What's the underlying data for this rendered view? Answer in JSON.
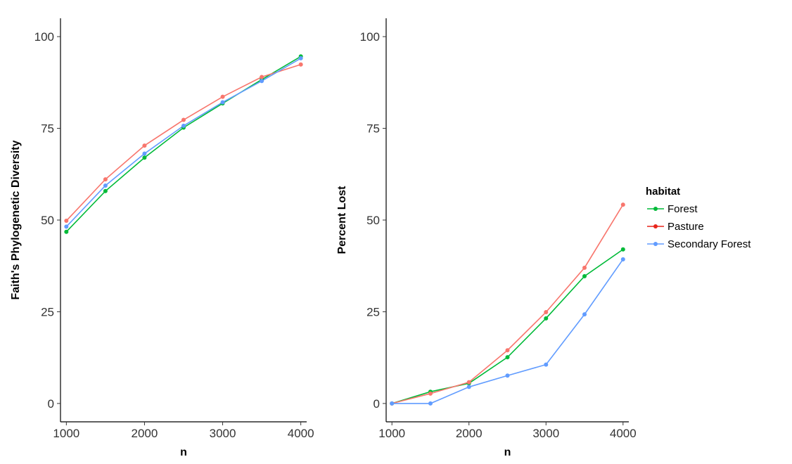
{
  "chart_data": [
    {
      "type": "line",
      "xlabel": "n",
      "ylabel": "Faith's Phylogenetic Diversity",
      "x": [
        1000,
        1500,
        2000,
        2500,
        3000,
        3500,
        4000
      ],
      "xlim": [
        925,
        4075
      ],
      "ylim": [
        -5,
        105
      ],
      "xticks": [
        "1000",
        "2000",
        "3000",
        "4000"
      ],
      "yticks": [
        "0",
        "25",
        "50",
        "75",
        "100"
      ],
      "grid": false,
      "series": [
        {
          "name": "Forest",
          "color": "#00BA38",
          "values": [
            46.8,
            57.9,
            67.0,
            75.2,
            81.8,
            88.3,
            94.6
          ]
        },
        {
          "name": "Pasture",
          "color": "#F8766D",
          "values": [
            49.8,
            61.1,
            70.3,
            77.3,
            83.6,
            89.0,
            92.4
          ]
        },
        {
          "name": "Secondary Forest",
          "color": "#619CFF",
          "values": [
            48.2,
            59.4,
            68.1,
            75.7,
            82.1,
            87.9,
            94.1
          ]
        }
      ]
    },
    {
      "type": "line",
      "xlabel": "n",
      "ylabel": "Percent Lost",
      "x": [
        1000,
        1500,
        2000,
        2500,
        3000,
        3500,
        4000
      ],
      "xlim": [
        925,
        4075
      ],
      "ylim": [
        -5,
        105
      ],
      "xticks": [
        "1000",
        "2000",
        "3000",
        "4000"
      ],
      "yticks": [
        "0",
        "25",
        "50",
        "75",
        "100"
      ],
      "grid": false,
      "series": [
        {
          "name": "Forest",
          "color": "#00BA38",
          "values": [
            0,
            3.2,
            5.5,
            12.6,
            23.2,
            34.7,
            42.0
          ]
        },
        {
          "name": "Pasture",
          "color": "#F8766D",
          "values": [
            0,
            2.7,
            5.8,
            14.5,
            24.9,
            37.0,
            54.2
          ]
        },
        {
          "name": "Secondary Forest",
          "color": "#619CFF",
          "values": [
            0,
            0,
            4.5,
            7.6,
            10.6,
            24.3,
            39.3
          ]
        }
      ]
    }
  ],
  "legend": {
    "title": "habitat",
    "placement": "right",
    "items": [
      {
        "label": "Forest",
        "color": "#00BA38"
      },
      {
        "label": "Pasture",
        "color": "#E8251B"
      },
      {
        "label": "Secondary Forest",
        "color": "#619CFF"
      }
    ]
  }
}
